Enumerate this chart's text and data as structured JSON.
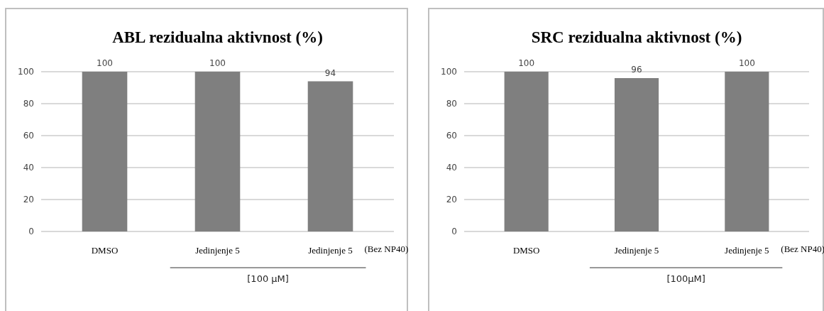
{
  "chart_data": [
    {
      "type": "bar",
      "title": "ABL rezidualna aktivnost (%)",
      "categories": [
        "DMSO",
        "Jedinjenje 5",
        "Jedinjenje 5"
      ],
      "values": [
        100,
        100,
        94
      ],
      "color": "#7f7f7f",
      "data_labels": true,
      "ylim": [
        0,
        100
      ],
      "yticks": [
        0,
        20,
        40,
        60,
        80,
        100
      ],
      "grid": "y",
      "xlabel": "[100 µM]",
      "annotations": [
        "(Bez NP40)"
      ]
    },
    {
      "type": "bar",
      "title": "SRC rezidualna aktivnost (%)",
      "categories": [
        "DMSO",
        "Jedinjenje 5",
        "Jedinjenje 5"
      ],
      "values": [
        100,
        96,
        100
      ],
      "color": "#7f7f7f",
      "data_labels": true,
      "ylim": [
        0,
        100
      ],
      "yticks": [
        0,
        20,
        40,
        60,
        80,
        100
      ],
      "grid": "y",
      "xlabel": "[100µM]",
      "annotations": [
        "(Bez NP40)"
      ]
    }
  ]
}
